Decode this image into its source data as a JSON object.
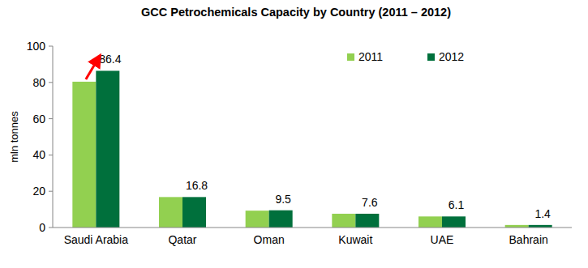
{
  "chart_data": {
    "type": "bar",
    "title": "GCC Petrochemicals Capacity by Country (2011 – 2012)",
    "y_label": "mln tonnes",
    "categories": [
      "Saudi Arabia",
      "Qatar",
      "Oman",
      "Kuwait",
      "UAE",
      "Bahrain"
    ],
    "series": [
      {
        "name": "2011",
        "color": "#92d050",
        "values": [
          80.4,
          16.8,
          9.3,
          7.6,
          6.1,
          1.4
        ],
        "data_labels": false
      },
      {
        "name": "2012",
        "color": "#00703c",
        "values": [
          86.4,
          16.8,
          9.5,
          7.6,
          6.1,
          1.4
        ],
        "data_labels": true
      }
    ],
    "ylim": [
      0,
      100
    ],
    "yticks": [
      0,
      20,
      40,
      60,
      80,
      100
    ],
    "grid": false,
    "legend": "top-right"
  }
}
